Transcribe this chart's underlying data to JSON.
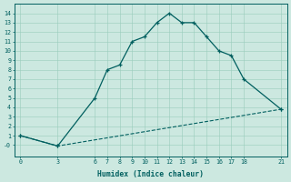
{
  "xlabel": "Humidex (Indice chaleur)",
  "ylabel": "",
  "bg_color": "#cce8e0",
  "line_color": "#005f5f",
  "curve1_x": [
    0,
    3,
    6,
    7,
    8,
    9,
    10,
    11,
    12,
    13,
    14,
    15,
    16,
    17,
    18,
    21
  ],
  "curve1_y": [
    1.0,
    -0.1,
    5.0,
    8.0,
    8.5,
    11.0,
    11.5,
    13.0,
    14.0,
    13.0,
    13.0,
    11.5,
    10.0,
    9.5,
    7.0,
    3.8
  ],
  "curve2_x": [
    0,
    3,
    21
  ],
  "curve2_y": [
    1.0,
    -0.1,
    3.8
  ],
  "xticks": [
    0,
    3,
    6,
    7,
    8,
    9,
    10,
    11,
    12,
    13,
    14,
    15,
    16,
    17,
    18,
    21
  ],
  "yticks": [
    0,
    1,
    2,
    3,
    4,
    5,
    6,
    7,
    8,
    9,
    10,
    11,
    12,
    13,
    14
  ],
  "ytick_labels": [
    "-0",
    "1",
    "2",
    "3",
    "4",
    "5",
    "6",
    "7",
    "8",
    "9",
    "10",
    "11",
    "12",
    "13",
    "14"
  ],
  "xlim": [
    -0.5,
    21.5
  ],
  "ylim": [
    -1.2,
    15.0
  ]
}
